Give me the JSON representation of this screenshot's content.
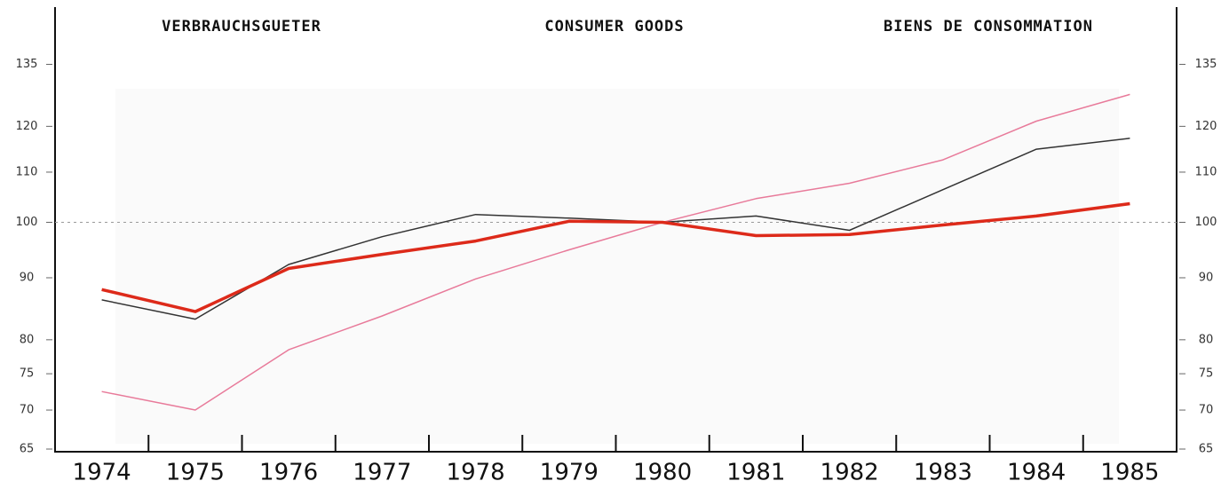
{
  "chart_data": {
    "type": "line",
    "title_de": "VERBRAUCHSGUETER",
    "title_en": "CONSUMER GOODS",
    "title_fr": "BIENS DE CONSOMMATION",
    "categories": [
      "1974",
      "1975",
      "1976",
      "1977",
      "1978",
      "1979",
      "1980",
      "1981",
      "1982",
      "1983",
      "1984",
      "1985"
    ],
    "series": [
      {
        "color": "#e87a9a",
        "width": 1.5,
        "values": [
          72.5,
          70.0,
          78.5,
          83.7,
          89.8,
          94.9,
          100,
          104.6,
          107.7,
          112.6,
          121.2,
          127.5
        ]
      },
      {
        "color": "#333333",
        "width": 1.5,
        "values": [
          86.3,
          83.2,
          92.3,
          97.3,
          101.5,
          100.8,
          100,
          101.2,
          98.5,
          106.4,
          114.9,
          117.3
        ]
      },
      {
        "color": "#dd2a1a",
        "width": 3.5,
        "values": [
          88.0,
          84.4,
          91.6,
          94.1,
          96.5,
          100.2,
          100,
          97.5,
          97.7,
          99.5,
          101.2,
          103.6
        ]
      }
    ],
    "ylim": [
      65,
      150
    ],
    "yticks": [
      65,
      70,
      75,
      80,
      90,
      100,
      110,
      120,
      135
    ],
    "log_scale": true,
    "reference_line": 100
  }
}
